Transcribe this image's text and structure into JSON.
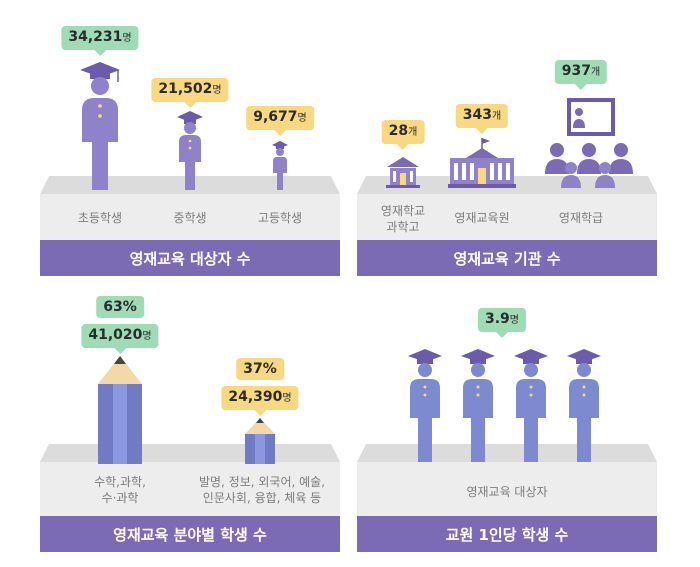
{
  "panels": {
    "targets": {
      "title": "영재교육 대상자 수",
      "items": [
        {
          "value": "34,231",
          "unit": "명",
          "label": "초등학생"
        },
        {
          "value": "21,502",
          "unit": "명",
          "label": "중학생"
        },
        {
          "value": "9,677",
          "unit": "명",
          "label": "고등학생"
        }
      ]
    },
    "institutions": {
      "title": "영재교육 기관 수",
      "items": [
        {
          "value": "28",
          "unit": "개",
          "label_line1": "영재학교",
          "label_line2": "과학고"
        },
        {
          "value": "343",
          "unit": "개",
          "label": "영재교육원"
        },
        {
          "value": "937",
          "unit": "개",
          "label": "영재학급"
        }
      ]
    },
    "fields": {
      "title": "영재교육 분야별 학생 수",
      "items": [
        {
          "percent": "63%",
          "value": "41,020",
          "unit": "명",
          "label_line1": "수학,과학,",
          "label_line2": "수·과학"
        },
        {
          "percent": "37%",
          "value": "24,390",
          "unit": "명",
          "label_line1": "발명, 정보, 외국어, 예술,",
          "label_line2": "인문사회, 융합, 체육 등"
        }
      ]
    },
    "ratio": {
      "title": "교원 1인당 학생 수",
      "value": "3.9",
      "unit": "명",
      "label": "영재교육 대상자"
    }
  },
  "colors": {
    "accent": "#7b6bb4",
    "figure": "#8f82c8",
    "figure_dark": "#6c5bab",
    "pencil": "#7d8ad0",
    "yellow_bubble": "#f8d982",
    "green_bubble": "#9fdcb6"
  }
}
